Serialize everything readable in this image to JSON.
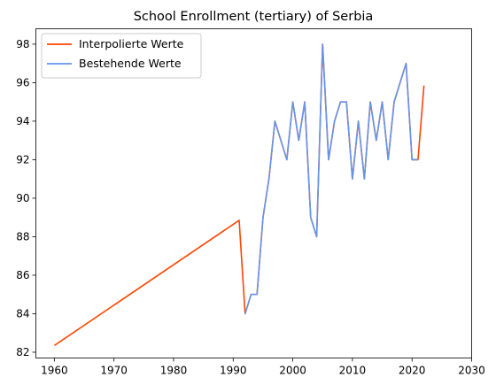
{
  "chart_data": {
    "type": "line",
    "title": "School Enrollment (tertiary) of Serbia",
    "xlabel": "",
    "ylabel": "",
    "xlim": [
      1956.9,
      2030
    ],
    "ylim": [
      81.7,
      98.8
    ],
    "xticks": [
      1960,
      1970,
      1980,
      1990,
      2000,
      2010,
      2020,
      2030
    ],
    "yticks": [
      82,
      84,
      86,
      88,
      90,
      92,
      94,
      96,
      98
    ],
    "grid": false,
    "legend_position": "top-left",
    "series": [
      {
        "name": "Interpolierte Werte",
        "color": "#ff4500",
        "x": [
          1960,
          1991,
          1992,
          1993,
          1994,
          1995,
          1996,
          1997,
          1998,
          1999,
          2000,
          2001,
          2002,
          2003,
          2004,
          2005,
          2006,
          2007,
          2008,
          2009,
          2010,
          2011,
          2012,
          2013,
          2014,
          2015,
          2016,
          2017,
          2018,
          2019,
          2020,
          2021,
          2022
        ],
        "y": [
          82.35,
          88.85,
          84,
          85,
          85,
          89,
          91,
          94,
          93,
          92,
          95,
          93,
          95,
          89,
          88,
          98,
          92,
          94,
          95,
          95,
          91,
          94,
          91,
          95,
          93,
          95,
          92,
          95,
          96,
          97,
          92,
          92,
          95.85
        ]
      },
      {
        "name": "Bestehende Werte",
        "color": "#6495ed",
        "x": [
          1992,
          1993,
          1994,
          1995,
          1996,
          1997,
          1998,
          1999,
          2000,
          2001,
          2002,
          2003,
          2004,
          2005,
          2006,
          2007,
          2008,
          2009,
          2010,
          2011,
          2012,
          2013,
          2014,
          2015,
          2016,
          2017,
          2018,
          2019,
          2020,
          2021
        ],
        "y": [
          84,
          85,
          85,
          89,
          91,
          94,
          93,
          92,
          95,
          93,
          95,
          89,
          88,
          98,
          92,
          94,
          95,
          95,
          91,
          94,
          91,
          95,
          93,
          95,
          92,
          95,
          96,
          97,
          92,
          92
        ]
      }
    ]
  }
}
